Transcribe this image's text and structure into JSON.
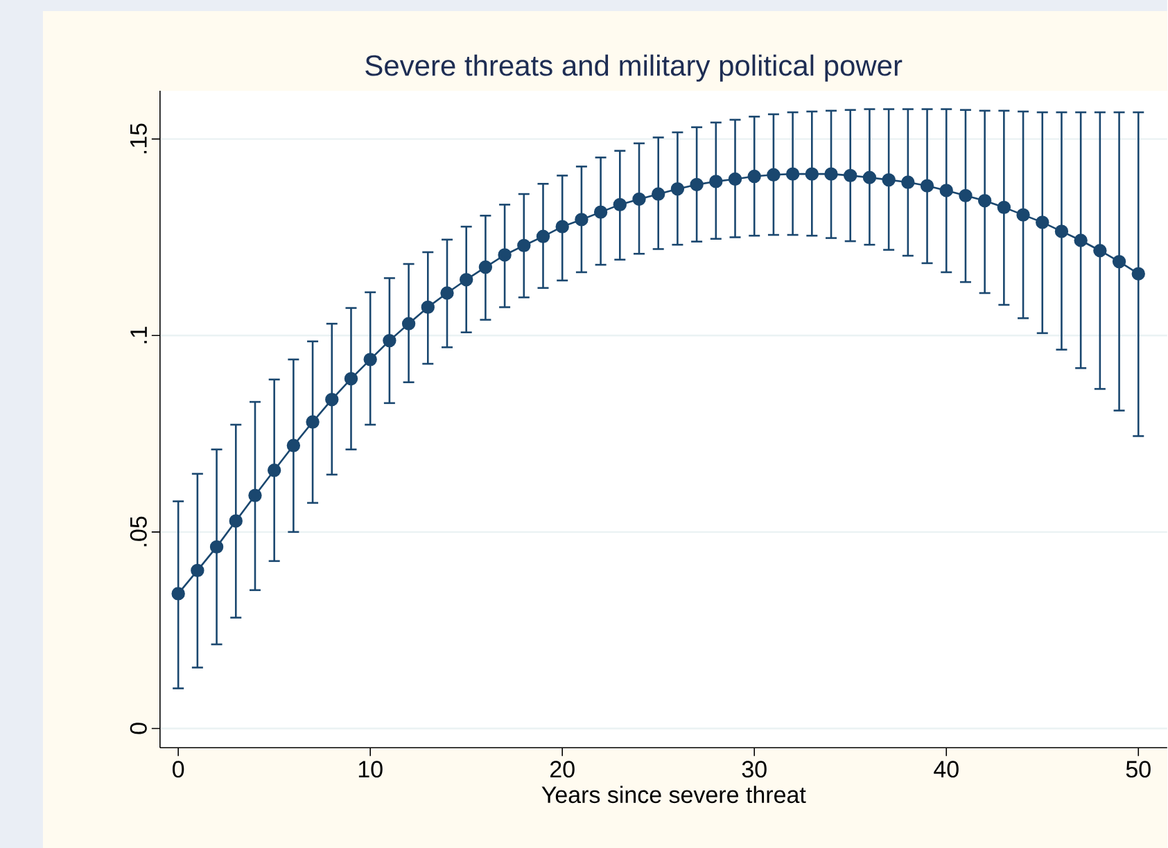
{
  "chart_data": {
    "type": "line",
    "title": "Severe threats and military political power",
    "xlabel": "Years since severe threat",
    "x": [
      0,
      1,
      2,
      3,
      4,
      5,
      6,
      7,
      8,
      9,
      10,
      11,
      12,
      13,
      14,
      15,
      16,
      17,
      18,
      19,
      20,
      21,
      22,
      23,
      24,
      25,
      26,
      27,
      28,
      29,
      30,
      31,
      32,
      33,
      34,
      35,
      36,
      37,
      38,
      39,
      40,
      41,
      42,
      43,
      44,
      45,
      46,
      47,
      48,
      49,
      50
    ],
    "series": [
      {
        "color": "#1a476f",
        "values": [
          0.0343,
          0.0402,
          0.0462,
          0.0528,
          0.0593,
          0.0657,
          0.072,
          0.078,
          0.0837,
          0.089,
          0.0939,
          0.0987,
          0.103,
          0.1072,
          0.1108,
          0.1142,
          0.1174,
          0.1205,
          0.1229,
          0.1252,
          0.1277,
          0.1295,
          0.1314,
          0.1333,
          0.1347,
          0.136,
          0.1373,
          0.1384,
          0.1392,
          0.1398,
          0.1405,
          0.1409,
          0.1411,
          0.1411,
          0.1411,
          0.1407,
          0.1402,
          0.1396,
          0.139,
          0.1381,
          0.1369,
          0.1356,
          0.1343,
          0.1326,
          0.1307,
          0.1288,
          0.1265,
          0.1242,
          0.1216,
          0.1188,
          0.1157
        ],
        "errors": [
          [
            0.0102,
            0.0578
          ],
          [
            0.0155,
            0.0648
          ],
          [
            0.0214,
            0.071
          ],
          [
            0.0282,
            0.0773
          ],
          [
            0.0352,
            0.0831
          ],
          [
            0.0426,
            0.0888
          ],
          [
            0.05,
            0.0939
          ],
          [
            0.0574,
            0.0985
          ],
          [
            0.0646,
            0.103
          ],
          [
            0.071,
            0.107
          ],
          [
            0.0773,
            0.111
          ],
          [
            0.0828,
            0.1146
          ],
          [
            0.0881,
            0.1182
          ],
          [
            0.0928,
            0.1212
          ],
          [
            0.097,
            0.1244
          ],
          [
            0.1008,
            0.1277
          ],
          [
            0.104,
            0.1305
          ],
          [
            0.1072,
            0.1333
          ],
          [
            0.1097,
            0.136
          ],
          [
            0.1121,
            0.1386
          ],
          [
            0.114,
            0.1407
          ],
          [
            0.1161,
            0.143
          ],
          [
            0.118,
            0.1453
          ],
          [
            0.1193,
            0.147
          ],
          [
            0.1208,
            0.1489
          ],
          [
            0.122,
            0.1504
          ],
          [
            0.1231,
            0.1517
          ],
          [
            0.1239,
            0.153
          ],
          [
            0.1246,
            0.1542
          ],
          [
            0.125,
            0.1549
          ],
          [
            0.1254,
            0.1557
          ],
          [
            0.1256,
            0.1563
          ],
          [
            0.1256,
            0.1568
          ],
          [
            0.1254,
            0.157
          ],
          [
            0.1248,
            0.1572
          ],
          [
            0.124,
            0.1574
          ],
          [
            0.1231,
            0.1576
          ],
          [
            0.1218,
            0.1576
          ],
          [
            0.1203,
            0.1576
          ],
          [
            0.1184,
            0.1576
          ],
          [
            0.1161,
            0.1576
          ],
          [
            0.1136,
            0.1574
          ],
          [
            0.1108,
            0.1572
          ],
          [
            0.1078,
            0.1572
          ],
          [
            0.1044,
            0.157
          ],
          [
            0.1006,
            0.1568
          ],
          [
            0.0964,
            0.1568
          ],
          [
            0.0917,
            0.1568
          ],
          [
            0.0864,
            0.1568
          ],
          [
            0.0809,
            0.1568
          ],
          [
            0.0744,
            0.1568
          ]
        ]
      }
    ],
    "xlim": [
      -0.95,
      51.5
    ],
    "ylim": [
      -0.0049,
      0.1623
    ],
    "xticks": [
      0,
      10,
      20,
      30,
      40,
      50
    ],
    "yticks": [
      0,
      {
        "value": 0.05,
        "label": ".05"
      },
      {
        "value": 0.1,
        "label": ".1"
      },
      {
        "value": 0.15,
        "label": ".15"
      }
    ],
    "grid": "y",
    "marker": "circle",
    "line_style": "solid"
  }
}
